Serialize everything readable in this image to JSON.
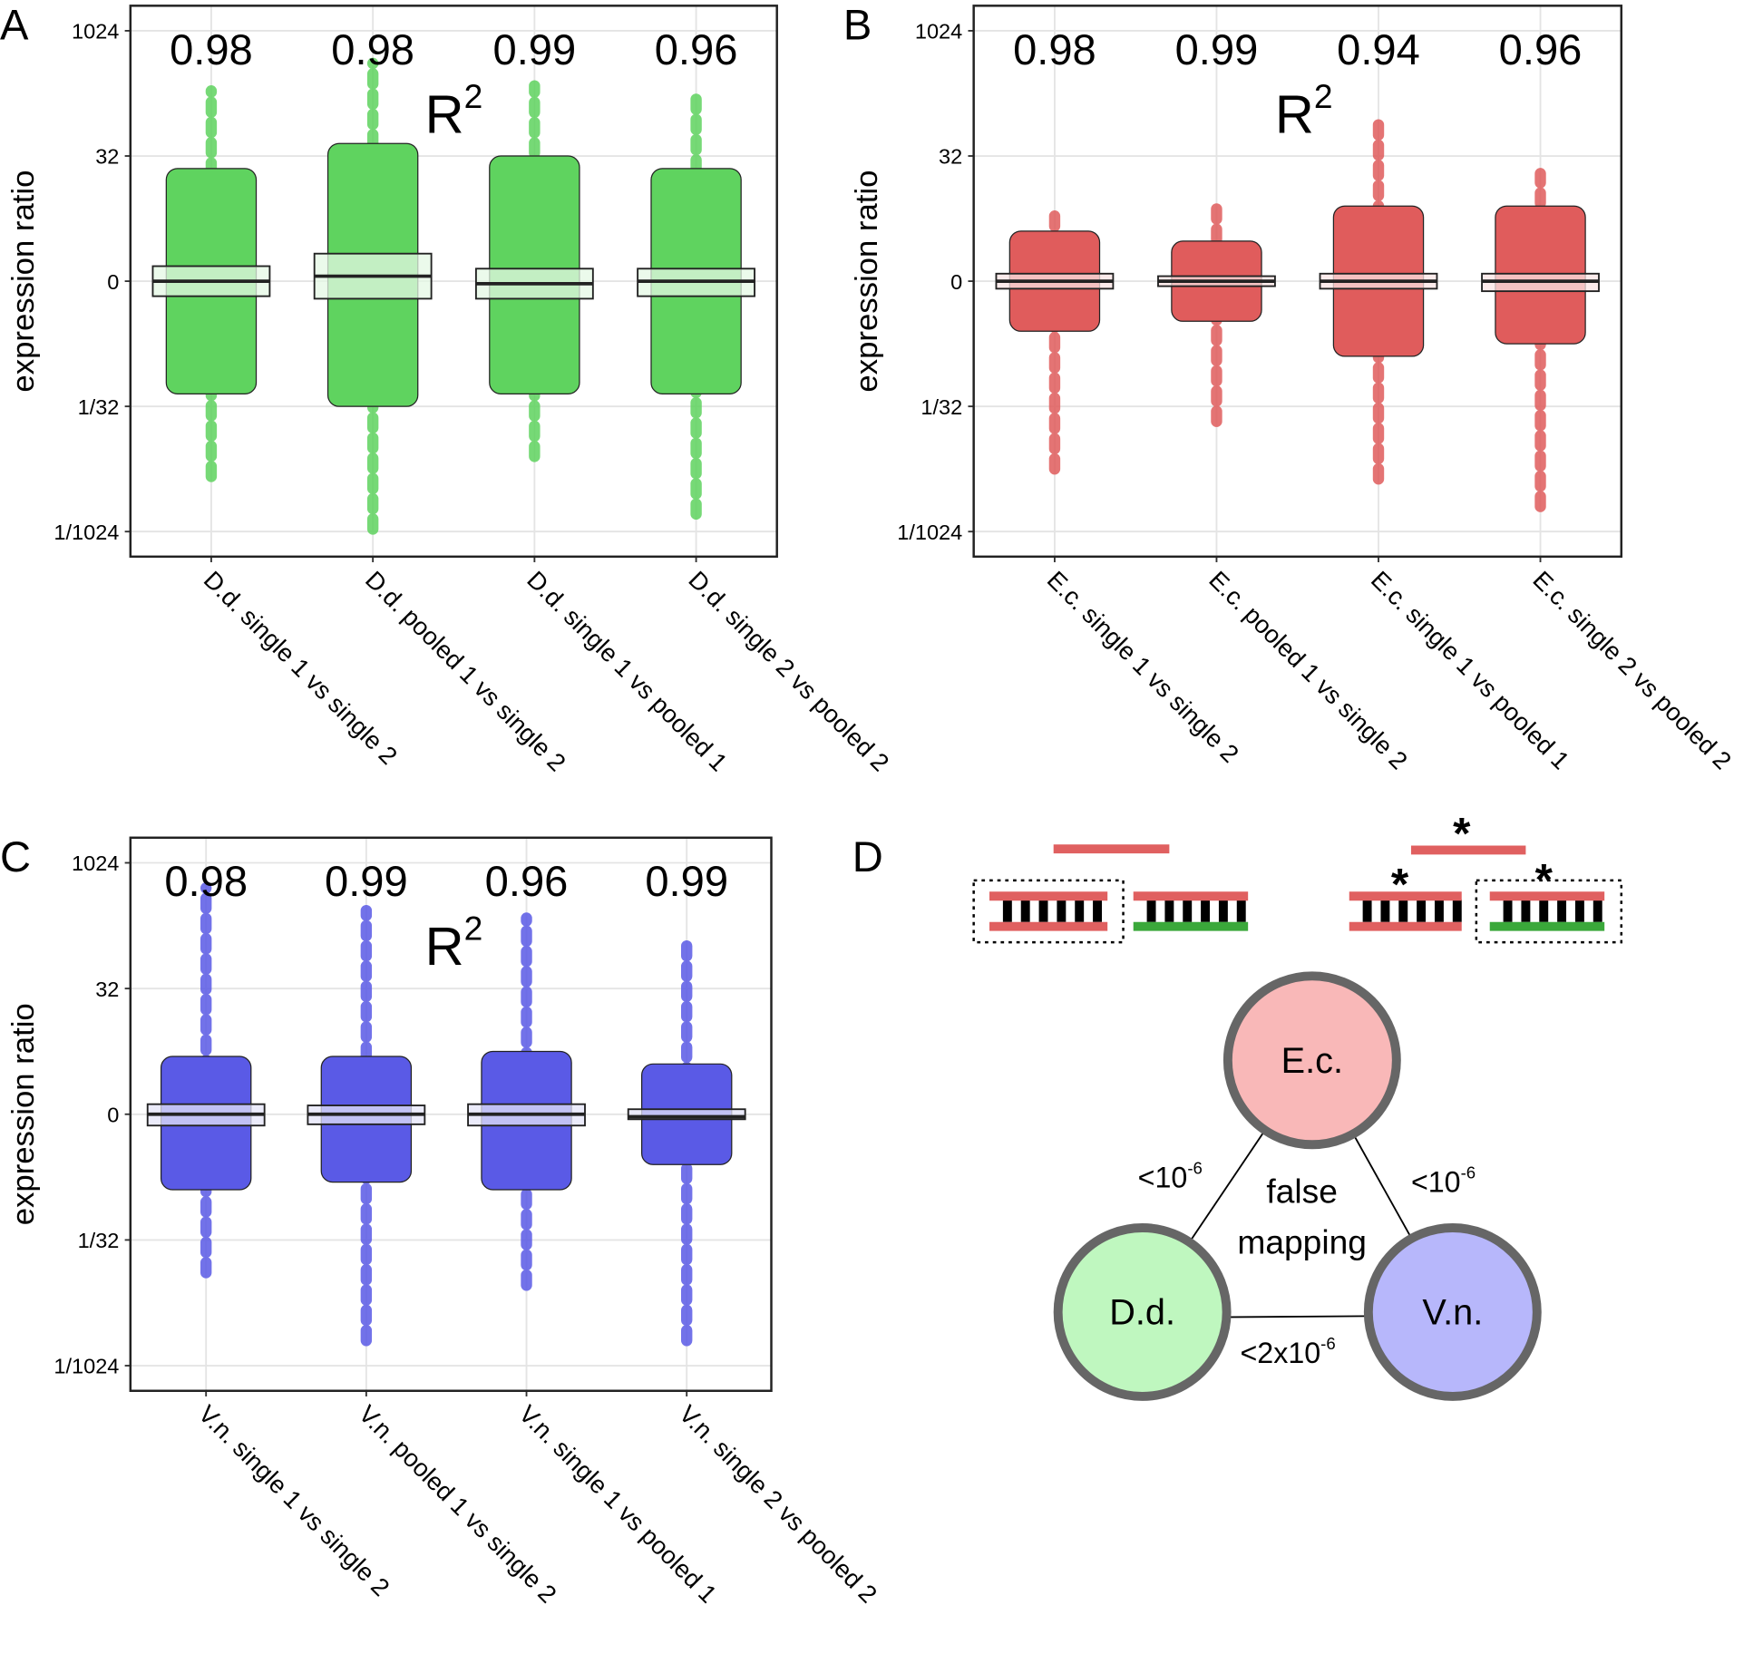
{
  "chart_data": [
    {
      "type": "box",
      "panel": "A",
      "ylabel": "expression ratio",
      "r2_label": {
        "base": "R",
        "exp": "2"
      },
      "categories": [
        "D.d. single 1 vs single 2",
        "D.d. pooled 1 vs single 2",
        "D.d. single 1 vs pooled 1",
        "D.d. single 2 vs pooled 2"
      ],
      "r2_values": [
        0.98,
        0.98,
        0.99,
        0.96
      ],
      "boxes": [
        {
          "low": -7.8,
          "dense_low": -4.5,
          "q1": -0.6,
          "median": 0,
          "q3": 0.6,
          "dense_high": 4.5,
          "high": 7.6
        },
        {
          "low": -9.9,
          "dense_low": -5,
          "q1": -0.7,
          "median": 0.2,
          "q3": 1.1,
          "dense_high": 5.5,
          "high": 8.7
        },
        {
          "low": -7,
          "dense_low": -4.5,
          "q1": -0.7,
          "median": -0.1,
          "q3": 0.5,
          "dense_high": 5,
          "high": 7.8
        },
        {
          "low": -9.3,
          "dense_low": -4.5,
          "q1": -0.6,
          "median": 0,
          "q3": 0.5,
          "dense_high": 4.5,
          "high": 7.6
        }
      ],
      "point_color": "#5fd35f",
      "box_color": "#e4f8e4",
      "ylim": [
        -11,
        11
      ],
      "yticks": [
        {
          "value": -10,
          "label": "1/1024"
        },
        {
          "value": -5,
          "label": "1/32"
        },
        0,
        {
          "value": 5,
          "label": "32"
        },
        {
          "value": 10,
          "label": "1024"
        }
      ],
      "grid": true
    },
    {
      "type": "box",
      "panel": "B",
      "ylabel": "expression ratio",
      "r2_label": {
        "base": "R",
        "exp": "2"
      },
      "categories": [
        "E.c. single 1 vs single 2",
        "E.c. pooled 1 vs single 2",
        "E.c. single 1 vs pooled 1",
        "E.c. single 2 vs pooled 2"
      ],
      "r2_values": [
        0.98,
        0.99,
        0.94,
        0.96
      ],
      "boxes": [
        {
          "low": -7.5,
          "dense_low": -2,
          "q1": -0.3,
          "median": 0,
          "q3": 0.3,
          "dense_high": 2,
          "high": 2.9
        },
        {
          "low": -5.6,
          "dense_low": -1.6,
          "q1": -0.2,
          "median": 0,
          "q3": 0.2,
          "dense_high": 1.6,
          "high": 3.1
        },
        {
          "low": -7.9,
          "dense_low": -3,
          "q1": -0.3,
          "median": 0,
          "q3": 0.3,
          "dense_high": 3,
          "high": 6.4
        },
        {
          "low": -9,
          "dense_low": -2.5,
          "q1": -0.4,
          "median": 0,
          "q3": 0.3,
          "dense_high": 3,
          "high": 4.3
        }
      ],
      "point_color": "#e05c5c",
      "box_color": "#fbe4e4",
      "ylim": [
        -11,
        11
      ],
      "yticks": [
        {
          "value": -10,
          "label": "1/1024"
        },
        {
          "value": -5,
          "label": "1/32"
        },
        0,
        {
          "value": 5,
          "label": "32"
        },
        {
          "value": 10,
          "label": "1024"
        }
      ],
      "grid": true
    },
    {
      "type": "box",
      "panel": "C",
      "ylabel": "expression ratio",
      "r2_label": {
        "base": "R",
        "exp": "2"
      },
      "categories": [
        "V.n. single 1 vs single 2",
        "V.n. pooled 1 vs single 2",
        "V.n. single 1 vs pooled 1",
        "V.n. single 2 vs pooled 2"
      ],
      "r2_values": [
        0.98,
        0.99,
        0.96,
        0.99
      ],
      "boxes": [
        {
          "low": -6.3,
          "dense_low": -3,
          "q1": -0.45,
          "median": 0,
          "q3": 0.4,
          "dense_high": 2.3,
          "high": 9
        },
        {
          "low": -9,
          "dense_low": -2.7,
          "q1": -0.4,
          "median": 0,
          "q3": 0.35,
          "dense_high": 2.3,
          "high": 8.1
        },
        {
          "low": -6.8,
          "dense_low": -3,
          "q1": -0.45,
          "median": 0,
          "q3": 0.4,
          "dense_high": 2.5,
          "high": 7.8
        },
        {
          "low": -9,
          "dense_low": -2,
          "q1": -0.2,
          "median": -0.1,
          "q3": 0.2,
          "dense_high": 2,
          "high": 7
        }
      ],
      "point_color": "#5a5ae6",
      "box_color": "#e4e4f8",
      "ylim": [
        -11,
        11
      ],
      "yticks": [
        {
          "value": -10,
          "label": "1/1024"
        },
        {
          "value": -5,
          "label": "1/32"
        },
        0,
        {
          "value": 5,
          "label": "32"
        },
        {
          "value": 10,
          "label": "1024"
        }
      ],
      "grid": true
    }
  ],
  "diagram": {
    "panel": "D",
    "nodes": [
      {
        "label": "E.c."
      },
      {
        "label": "D.d."
      },
      {
        "label": "V.n."
      }
    ],
    "center_label": [
      "false",
      "mapping"
    ],
    "edges": [
      {
        "label": {
          "base": "<10",
          "exp": "-6"
        }
      },
      {
        "label": {
          "base": "<10",
          "exp": "-6"
        }
      },
      {
        "label": {
          "base": "<2x10",
          "exp": "-6"
        }
      }
    ]
  }
}
